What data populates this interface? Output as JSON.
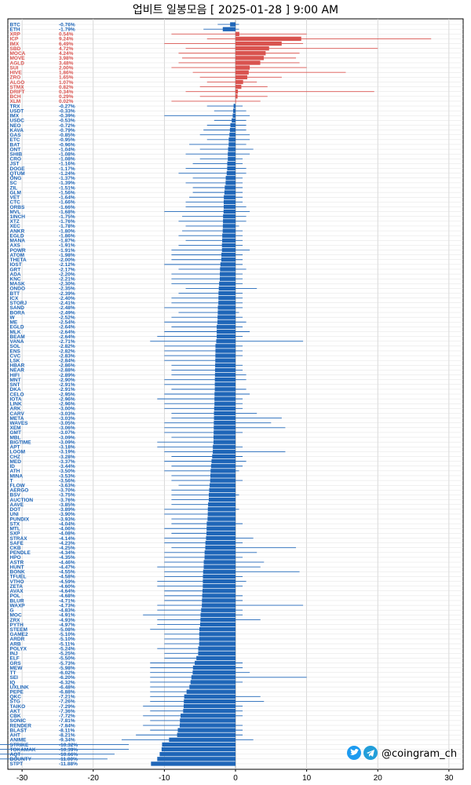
{
  "title": "업비트 일봉모음 [ 2025-01-28 ]  9:00 AM",
  "brand": {
    "handle": "@coingram_ch",
    "icons": [
      "twitter-icon",
      "telegram-icon"
    ]
  },
  "colors": {
    "up": "#d9534f",
    "down": "#1f66b8",
    "grid": "#e0e0e0",
    "wick": "#1f66b8"
  },
  "chart_data": {
    "type": "bar",
    "orientation": "horizontal",
    "xlim": [
      -32,
      32
    ],
    "xticks": [
      -30,
      -20,
      -10,
      0,
      10,
      20,
      30
    ],
    "grid": true,
    "title": "업비트 일봉모음 [ 2025-01-28 ]  9:00 AM",
    "categories": [
      "BTC",
      "ETH",
      "XRP",
      "ICP",
      "IMX",
      "SBD",
      "MOCA",
      "MOVE",
      "AGLD",
      "SUI",
      "HIVE",
      "ZRO",
      "ALGO",
      "STMX",
      "DRIFT",
      "BCH",
      "XLM",
      "TRX",
      "USDT",
      "IMX",
      "USDC",
      "NEO",
      "KAVA",
      "GAS",
      "ETC",
      "BAT",
      "ONT",
      "SHIB",
      "CRO",
      "JST",
      "DOGE",
      "QTUM",
      "ONG",
      "SC",
      "ZIL",
      "GLM",
      "VET",
      "CTC",
      "ORBS",
      "MVL",
      "1INCH",
      "XTZ",
      "XEC",
      "ANKR",
      "EGLD",
      "MANA",
      "AXS",
      "POWR",
      "ATOM",
      "THETA",
      "IOST",
      "GRT",
      "ADA",
      "KNC",
      "MASK",
      "ONDO",
      "BTT",
      "ICX",
      "STORJ",
      "SAND",
      "BORA",
      "W",
      "ME",
      "EGLD",
      "MLK",
      "BEAM",
      "VANA",
      "SOL",
      "ENS",
      "CVC",
      "LSK",
      "HBAR",
      "NEAR",
      "HIFI",
      "MNT",
      "SNT",
      "DKA",
      "CELO",
      "IOTA",
      "LINK",
      "ARK",
      "CARV",
      "META",
      "WAVES",
      "XEM",
      "GMT",
      "MBL",
      "BIGTIME",
      "APT",
      "LOOM",
      "CHZ",
      "MED",
      "ID",
      "ATH",
      "MINA",
      "T",
      "FLOW",
      "AERGO",
      "BSV",
      "AUCTION",
      "AAVE",
      "DOT",
      "UNI",
      "PUNDIX",
      "STX",
      "MTL",
      "SXP",
      "STRAX",
      "SAFE",
      "CKB",
      "PENDLE",
      "HPO",
      "ASTR",
      "HUNT",
      "BONK",
      "TFUEL",
      "VTHO",
      "ZETA",
      "AVAX",
      "POL",
      "BLUR",
      "WAXP",
      "G",
      "MOC",
      "ZRX",
      "PYTH",
      "STEEM",
      "GAME2",
      "ARDR",
      "ARB",
      "POLYX",
      "INJ",
      "ELF",
      "GRS",
      "MEW",
      "TT",
      "SEI",
      "IQ",
      "UXLINK",
      "PEPE",
      "QKC",
      "STG",
      "TAIKO",
      "AKT",
      "CBK",
      "SONIC",
      "RENDER",
      "BLAST",
      "AHT",
      "ANIME",
      "STRIKE",
      "TOKAMAK",
      "AQT",
      "BOUNTY",
      "STPT"
    ],
    "values": [
      -0.76,
      -1.79,
      0.54,
      9.24,
      6.49,
      4.72,
      4.24,
      3.98,
      3.48,
      2.0,
      1.86,
      1.65,
      1.07,
      0.82,
      0.34,
      0.29,
      0.02,
      -0.27,
      -0.33,
      -0.39,
      -0.53,
      -0.72,
      -0.79,
      -0.85,
      -0.95,
      -0.96,
      -1.04,
      -1.08,
      -1.08,
      -1.16,
      -1.17,
      -1.24,
      -1.37,
      -1.39,
      -1.51,
      -1.56,
      -1.64,
      -1.66,
      -1.66,
      -1.68,
      -1.75,
      -1.76,
      -1.78,
      -1.8,
      -1.86,
      -1.87,
      -1.91,
      -1.91,
      -1.98,
      -2.0,
      -2.12,
      -2.17,
      -2.2,
      -2.21,
      -2.3,
      -2.35,
      -2.39,
      -2.4,
      -2.41,
      -2.48,
      -2.49,
      -2.52,
      -2.54,
      -2.64,
      -2.64,
      -2.64,
      -2.71,
      -2.82,
      -2.82,
      -2.83,
      -2.84,
      -2.86,
      -2.88,
      -2.89,
      -2.9,
      -2.91,
      -2.91,
      -2.95,
      -2.96,
      -2.96,
      -3.0,
      -3.03,
      -3.03,
      -3.05,
      -3.06,
      -3.07,
      -3.09,
      -3.09,
      -3.18,
      -3.19,
      -3.28,
      -3.37,
      -3.44,
      -3.5,
      -3.53,
      -3.56,
      -3.63,
      -3.7,
      -3.75,
      -3.76,
      -3.85,
      -3.89,
      -3.9,
      -3.93,
      -4.04,
      -4.06,
      -4.08,
      -4.14,
      -4.23,
      -4.25,
      -4.34,
      -4.35,
      -4.46,
      -4.47,
      -4.55,
      -4.58,
      -4.59,
      -4.6,
      -4.64,
      -4.68,
      -4.71,
      -4.73,
      -4.83,
      -4.91,
      -4.93,
      -4.97,
      -5.08,
      -5.1,
      -5.1,
      -5.11,
      -5.24,
      -5.25,
      -5.5,
      -5.73,
      -5.98,
      -6.02,
      -6.2,
      -6.32,
      -6.48,
      -6.88,
      -7.21,
      -7.26,
      -7.29,
      -7.36,
      -7.72,
      -7.81,
      -7.84,
      -8.11,
      -8.21,
      -9.34,
      -10.32,
      -10.39,
      -10.66,
      -11.0,
      -11.88
    ],
    "range_low": [
      -2.5,
      -4.5,
      -9,
      -4,
      -10,
      -7,
      -8,
      -7.5,
      -8,
      -9,
      -6,
      -5,
      -4,
      -5,
      -7,
      -5,
      -9,
      -4,
      -3,
      -10,
      -3,
      -4,
      -4.5,
      -5,
      -4,
      -6.5,
      -5,
      -7,
      -5,
      -6,
      -7,
      -8,
      -6,
      -7,
      -6,
      -6,
      -6.5,
      -7,
      -7,
      -10,
      -7.5,
      -8,
      -7,
      -7.5,
      -8,
      -7,
      -8,
      -9,
      -9,
      -9,
      -10,
      -8,
      -9,
      -9,
      -9,
      -7,
      -8,
      -9,
      -9,
      -10,
      -8,
      -9,
      -10,
      -9,
      -10,
      -11,
      -12,
      -10,
      -10,
      -10,
      -10,
      -9,
      -9,
      -9,
      -10,
      -10,
      -9,
      -10,
      -11,
      -10,
      -10,
      -9,
      -9,
      -10,
      -10,
      -10,
      -9,
      -11,
      -11,
      -10,
      -9,
      -10,
      -9,
      -10,
      -9,
      -9,
      -8,
      -9,
      -9,
      -9,
      -9,
      -10,
      -10,
      -9,
      -9,
      -10,
      -9,
      -10,
      -10,
      -9,
      -10,
      -10,
      -10,
      -11,
      -10,
      -10,
      -11,
      -11,
      -10,
      -10,
      -10,
      -11,
      -11,
      -13,
      -11,
      -11,
      -12,
      -10,
      -10,
      -10,
      -11,
      -10,
      -10,
      -12,
      -12,
      -12,
      -12,
      -12,
      -12,
      -12,
      -12,
      -12,
      -13,
      -12,
      -13,
      -12,
      -13,
      -12,
      -14,
      -16,
      -15,
      -15,
      -17,
      -18
    ],
    "range_high": [
      0.5,
      0.5,
      10,
      27.5,
      9.5,
      20,
      9,
      8.5,
      9,
      10,
      15.5,
      6.5,
      3,
      4.5,
      19.5,
      4.5,
      3.5,
      1,
      1.5,
      2,
      1.5,
      1.5,
      1.5,
      2,
      2,
      1.5,
      2.5,
      2,
      1,
      1,
      1.5,
      1.5,
      1,
      1,
      1,
      1,
      1,
      1,
      1.5,
      2,
      1.5,
      1.5,
      0.5,
      1,
      1,
      1,
      1,
      2,
      1,
      1,
      1,
      1.5,
      1,
      1,
      1,
      3,
      1,
      1,
      1,
      1,
      0.5,
      1,
      1.5,
      1,
      2,
      1,
      9.5,
      1,
      1,
      1,
      0,
      1,
      1,
      1.5,
      1.5,
      0,
      1.5,
      2,
      1,
      1,
      1,
      3,
      6.5,
      5,
      7,
      1,
      0,
      0,
      1,
      7,
      1,
      1.5,
      1,
      0.5,
      0,
      1,
      0,
      0,
      0.5,
      0,
      0,
      0.5,
      0,
      0,
      1,
      0,
      0,
      2.5,
      1,
      8.5,
      3,
      1,
      4,
      3.5,
      9,
      1,
      1.5,
      1,
      0,
      1,
      1,
      9.5,
      1,
      1,
      3.5,
      0,
      0,
      0,
      0,
      0,
      0,
      0,
      0,
      1,
      1,
      2,
      10,
      1,
      0,
      0,
      3.5,
      4,
      1,
      1,
      1,
      0,
      1,
      1,
      1,
      2.5
    ]
  }
}
